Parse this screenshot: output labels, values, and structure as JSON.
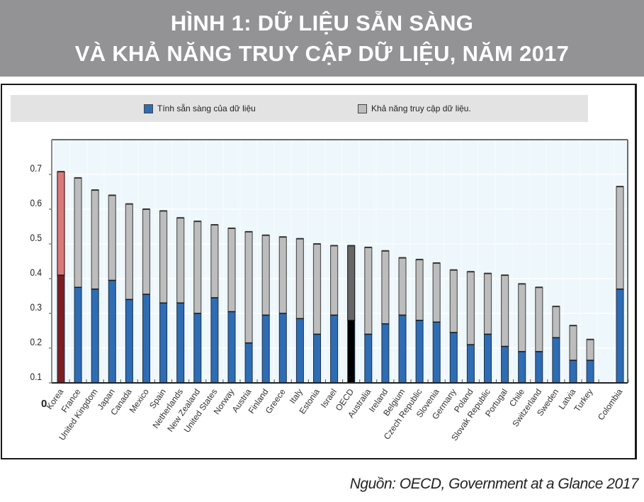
{
  "title": {
    "line1": "HÌNH 1: DỮ LIỆU SẴN SÀNG",
    "line2": "VÀ KHẢ NĂNG TRUY CẬP DỮ LIỆU, NĂM 2017"
  },
  "source": "Nguồn: OECD, Government at a Glance 2017",
  "colors": {
    "title_bg": "#939396",
    "availability": "#2e6db4",
    "accessibility": "#bdbdbd",
    "korea_availability": "#7a1e22",
    "korea_accessibility": "#d97a7a",
    "oecd_availability": "#000000",
    "oecd_accessibility": "#666666",
    "plot_bg": "#eef7fb"
  },
  "chart_data": {
    "type": "bar",
    "stacked": true,
    "title": "",
    "xlabel": "",
    "ylabel": "",
    "ylim": [
      0.1,
      0.75
    ],
    "yticks": [
      "0.7",
      "0.6",
      "0.5",
      "0.4",
      "0.3",
      "0.2",
      "0.1"
    ],
    "ytick_values": [
      0.7,
      0.6,
      0.5,
      0.4,
      0.3,
      0.2,
      0.1
    ],
    "origin_label": "0",
    "grid": true,
    "legend_position": "top",
    "categories": [
      "Korea",
      "France",
      "United Kingdom",
      "Japan",
      "Canada",
      "Mexico",
      "Spain",
      "Netherlands",
      "New Zealand",
      "United States",
      "Norway",
      "Austria",
      "Finland",
      "Greece",
      "Italy",
      "Estonia",
      "Israel",
      "OECD",
      "Australia",
      "Ireland",
      "Belgium",
      "Czech Republic",
      "Slovenia",
      "Germany",
      "Poland",
      "Slovak Republic",
      "Portugal",
      "Chile",
      "Switzerland",
      "Sweden",
      "Latvia",
      "Turkey",
      "",
      "Colombia"
    ],
    "series": [
      {
        "name": "Tính sẵn sàng của dữ liệu",
        "values": [
          0.41,
          0.375,
          0.37,
          0.395,
          0.34,
          0.355,
          0.33,
          0.33,
          0.3,
          0.345,
          0.305,
          0.215,
          0.295,
          0.3,
          0.285,
          0.24,
          0.295,
          0.28,
          0.24,
          0.27,
          0.295,
          0.28,
          0.275,
          0.245,
          0.21,
          0.24,
          0.205,
          0.19,
          0.19,
          0.23,
          0.165,
          0.165,
          null,
          0.37
        ]
      },
      {
        "name": "Khả năng truy cập dữ liệu.",
        "totals": [
          0.708,
          0.69,
          0.655,
          0.64,
          0.615,
          0.6,
          0.595,
          0.575,
          0.565,
          0.555,
          0.545,
          0.535,
          0.525,
          0.52,
          0.515,
          0.5,
          0.495,
          0.495,
          0.49,
          0.48,
          0.46,
          0.455,
          0.445,
          0.425,
          0.42,
          0.415,
          0.41,
          0.385,
          0.375,
          0.32,
          0.265,
          0.225,
          null,
          0.665
        ]
      }
    ]
  }
}
